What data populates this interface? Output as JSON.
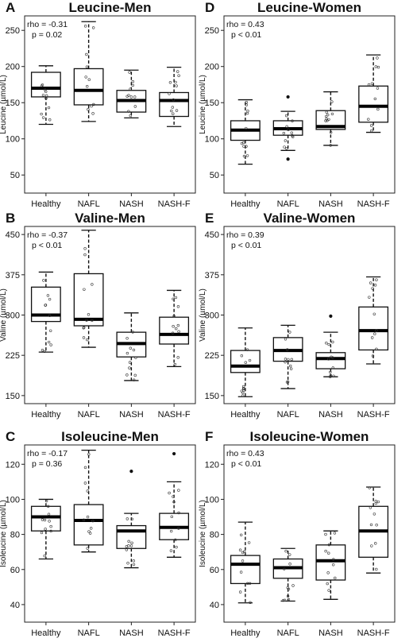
{
  "chart_data": [
    {
      "type": "box",
      "panel_letter": "A",
      "title": "Leucine-Men",
      "ylabel": "Leucine (µmol/L)",
      "ylim": [
        25,
        270
      ],
      "yticks": [
        50,
        100,
        150,
        200,
        250
      ],
      "categories": [
        "Healthy",
        "NAFL",
        "NASH",
        "NASH-F"
      ],
      "annotation": [
        "rho = -0.31",
        "p = 0.02"
      ],
      "boxes": [
        {
          "whisker_low": 120,
          "q1": 158,
          "median": 170,
          "q3": 192,
          "whisker_high": 201,
          "outliers": []
        },
        {
          "whisker_low": 124,
          "q1": 147,
          "median": 167,
          "q3": 197,
          "whisker_high": 262,
          "outliers": []
        },
        {
          "whisker_low": 129,
          "q1": 137,
          "median": 153,
          "q3": 167,
          "whisker_high": 195,
          "outliers": []
        },
        {
          "whisker_low": 117,
          "q1": 131,
          "median": 153,
          "q3": 164,
          "whisker_high": 199,
          "outliers": []
        }
      ]
    },
    {
      "type": "box",
      "panel_letter": "B",
      "title": "Valine-Men",
      "ylabel": "Valine (µmol/L)",
      "ylim": [
        135,
        465
      ],
      "yticks": [
        150,
        225,
        300,
        375,
        450
      ],
      "categories": [
        "Healthy",
        "NAFL",
        "NASH",
        "NASH-F"
      ],
      "annotation": [
        "rho = -0.37",
        "p < 0.01"
      ],
      "boxes": [
        {
          "whisker_low": 231,
          "q1": 288,
          "median": 300,
          "q3": 352,
          "whisker_high": 380,
          "outliers": []
        },
        {
          "whisker_low": 240,
          "q1": 280,
          "median": 292,
          "q3": 377,
          "whisker_high": 458,
          "outliers": []
        },
        {
          "whisker_low": 178,
          "q1": 222,
          "median": 247,
          "q3": 268,
          "whisker_high": 304,
          "outliers": []
        },
        {
          "whisker_low": 204,
          "q1": 246,
          "median": 264,
          "q3": 296,
          "whisker_high": 346,
          "outliers": []
        }
      ]
    },
    {
      "type": "box",
      "panel_letter": "C",
      "title": "Isoleucine-Men",
      "ylabel": "Isoleucine (µmol/L)",
      "ylim": [
        30,
        131
      ],
      "yticks": [
        40,
        60,
        80,
        100,
        120
      ],
      "categories": [
        "Healthy",
        "NAFL",
        "NASH",
        "NASH-F"
      ],
      "annotation": [
        "rho = -0.17",
        "p = 0.36"
      ],
      "boxes": [
        {
          "whisker_low": 66,
          "q1": 82,
          "median": 90,
          "q3": 96,
          "whisker_high": 100,
          "outliers": []
        },
        {
          "whisker_low": 70,
          "q1": 74,
          "median": 88,
          "q3": 97,
          "whisker_high": 128,
          "outliers": []
        },
        {
          "whisker_low": 61,
          "q1": 72,
          "median": 82,
          "q3": 85,
          "whisker_high": 92,
          "outliers": [
            116
          ]
        },
        {
          "whisker_low": 67,
          "q1": 77,
          "median": 84,
          "q3": 92,
          "whisker_high": 110,
          "outliers": [
            126
          ]
        }
      ]
    },
    {
      "type": "box",
      "panel_letter": "D",
      "title": "Leucine-Women",
      "ylabel": "Leucine (µmol/L)",
      "ylim": [
        25,
        270
      ],
      "yticks": [
        50,
        100,
        150,
        200,
        250
      ],
      "categories": [
        "Healthy",
        "NAFL",
        "NASH",
        "NASH-F"
      ],
      "annotation": [
        "rho = 0.43",
        "p < 0.01"
      ],
      "boxes": [
        {
          "whisker_low": 65,
          "q1": 98,
          "median": 112,
          "q3": 125,
          "whisker_high": 154,
          "outliers": []
        },
        {
          "whisker_low": 84,
          "q1": 105,
          "median": 114,
          "q3": 125,
          "whisker_high": 138,
          "outliers": [
            158,
            72
          ]
        },
        {
          "whisker_low": 91,
          "q1": 113,
          "median": 117,
          "q3": 139,
          "whisker_high": 165,
          "outliers": []
        },
        {
          "whisker_low": 109,
          "q1": 123,
          "median": 145,
          "q3": 173,
          "whisker_high": 216,
          "outliers": []
        }
      ]
    },
    {
      "type": "box",
      "panel_letter": "E",
      "title": "Valine-Women",
      "ylabel": "Valine (µmol/L)",
      "ylim": [
        135,
        465
      ],
      "yticks": [
        150,
        225,
        300,
        375,
        450
      ],
      "categories": [
        "Healthy",
        "NAFL",
        "NASH",
        "NASH-F"
      ],
      "annotation": [
        "rho = 0.39",
        "p < 0.01"
      ],
      "boxes": [
        {
          "whisker_low": 148,
          "q1": 193,
          "median": 205,
          "q3": 234,
          "whisker_high": 276,
          "outliers": []
        },
        {
          "whisker_low": 163,
          "q1": 214,
          "median": 234,
          "q3": 258,
          "whisker_high": 281,
          "outliers": []
        },
        {
          "whisker_low": 185,
          "q1": 200,
          "median": 219,
          "q3": 230,
          "whisker_high": 268,
          "outliers": [
            298
          ]
        },
        {
          "whisker_low": 209,
          "q1": 235,
          "median": 271,
          "q3": 315,
          "whisker_high": 371,
          "outliers": []
        }
      ]
    },
    {
      "type": "box",
      "panel_letter": "F",
      "title": "Isoleucine-Women",
      "ylabel": "Isoleucine (µmol/L)",
      "ylim": [
        30,
        131
      ],
      "yticks": [
        40,
        60,
        80,
        100,
        120
      ],
      "categories": [
        "Healthy",
        "NAFL",
        "NASH",
        "NASH-F"
      ],
      "annotation": [
        "rho = 0.43",
        "p < 0.01"
      ],
      "boxes": [
        {
          "whisker_low": 41,
          "q1": 52,
          "median": 63,
          "q3": 68,
          "whisker_high": 87,
          "outliers": []
        },
        {
          "whisker_low": 42,
          "q1": 55,
          "median": 61,
          "q3": 66,
          "whisker_high": 72,
          "outliers": []
        },
        {
          "whisker_low": 43,
          "q1": 54,
          "median": 65,
          "q3": 74,
          "whisker_high": 82,
          "outliers": []
        },
        {
          "whisker_low": 58,
          "q1": 67,
          "median": 82,
          "q3": 96,
          "whisker_high": 107,
          "outliers": []
        }
      ]
    }
  ]
}
